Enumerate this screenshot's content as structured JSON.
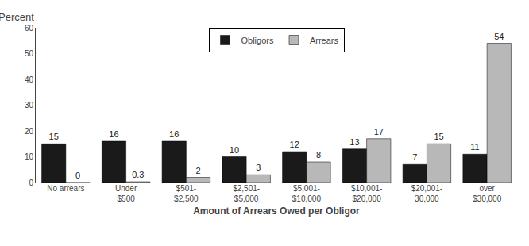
{
  "chart_data": {
    "type": "bar",
    "categories": [
      "No arrears",
      "Under\n$500",
      "$501-\n$2,500",
      "$2,501-\n$5,000",
      "$5,001-\n$10,000",
      "$10,001-\n$20,000",
      "$20,001-\n30,000",
      "over\n$30,000"
    ],
    "series": [
      {
        "name": "Obligors",
        "color": "#1a1a1a",
        "values": [
          15,
          16,
          16,
          10,
          12,
          13,
          7,
          11
        ]
      },
      {
        "name": "Arrears",
        "color": "#b8b8b8",
        "values": [
          0,
          0.3,
          2,
          3,
          8,
          17,
          15,
          54
        ]
      }
    ],
    "ylabel": "Percent",
    "xlabel": "Amount of Arrears Owed per Obligor",
    "ylim": [
      0,
      60
    ],
    "yticks": [
      0,
      10,
      20,
      30,
      40,
      50,
      60
    ],
    "grid": false,
    "legend": "upper center",
    "data_labels": true
  }
}
